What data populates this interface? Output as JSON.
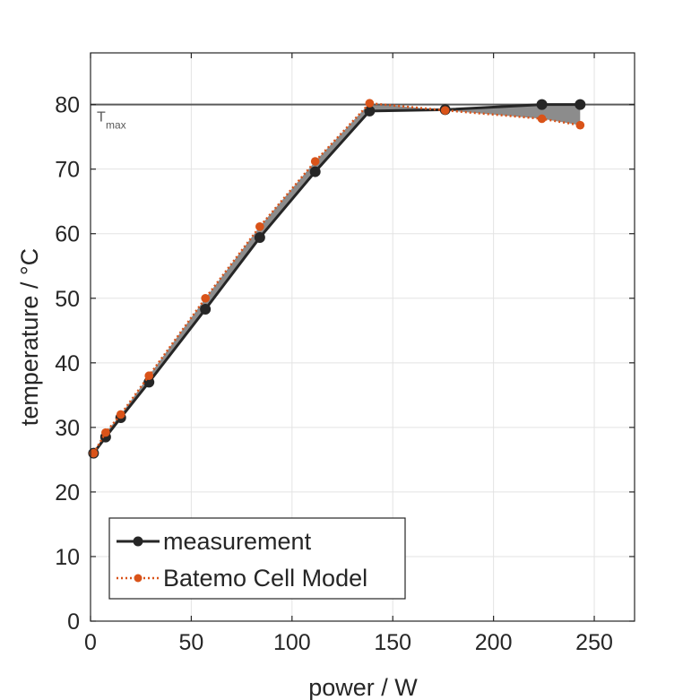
{
  "chart_data": {
    "type": "line",
    "xlabel": "power / W",
    "ylabel": "temperature / °C",
    "xlim": [
      0,
      270
    ],
    "ylim": [
      0,
      88
    ],
    "xticks": [
      0,
      50,
      100,
      150,
      200,
      250
    ],
    "yticks": [
      0,
      10,
      20,
      30,
      40,
      50,
      60,
      70,
      80
    ],
    "grid": true,
    "legend_position": "bottom-left",
    "reference_line": {
      "y": 80,
      "label": "T",
      "label_sub": "max",
      "color": "#5a5a5a"
    },
    "shade_between_series": {
      "color": "#8c8c8c"
    },
    "series": [
      {
        "name": "measurement",
        "color": "#262626",
        "line_style": "solid",
        "marker": "circle",
        "x": [
          1.5,
          7.5,
          15,
          29,
          57,
          84,
          111.5,
          138.5,
          176,
          224,
          243
        ],
        "y": [
          26.0,
          28.5,
          31.5,
          37.0,
          48.3,
          59.4,
          69.6,
          79.0,
          79.2,
          80.0,
          80.0
        ]
      },
      {
        "name": "Batemo Cell Model",
        "color": "#d95319",
        "line_style": "dotted",
        "marker": "circle",
        "x": [
          1.5,
          7.5,
          15,
          29,
          57,
          84,
          111.5,
          138.5,
          176,
          224,
          243
        ],
        "y": [
          26.0,
          29.2,
          32.0,
          38.0,
          50.0,
          61.1,
          71.2,
          80.2,
          79.1,
          77.8,
          76.8
        ]
      }
    ]
  }
}
